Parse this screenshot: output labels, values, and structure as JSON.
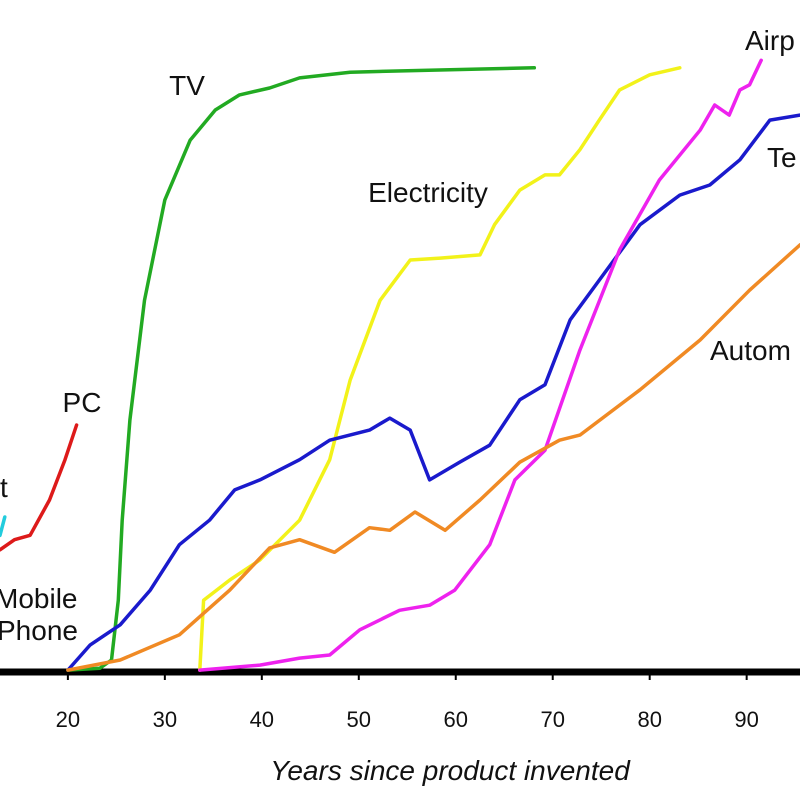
{
  "chart_data": {
    "type": "line",
    "x_label": "Years since product invented",
    "xlim": [
      13,
      95.5
    ],
    "ylim": [
      0,
      100
    ],
    "xticks": [
      20,
      30,
      40,
      50,
      60,
      70,
      80,
      90
    ],
    "annotations": [
      "Mobile",
      "Phone"
    ],
    "series": [
      {
        "name": "TV",
        "color": "#22aa22",
        "x": [
          20,
          23.3,
          24.5,
          25.2,
          25.6,
          26.4,
          27.9,
          30,
          32.6,
          35.2,
          37.7,
          40.8,
          43.9,
          49.1,
          59.4,
          68.1
        ],
        "values": [
          0.3,
          0.6,
          1.9,
          11.4,
          24.1,
          40,
          59,
          74.9,
          84.4,
          89.2,
          91.6,
          92.7,
          94.3,
          95.2,
          95.6,
          95.9
        ]
      },
      {
        "name": "Electricity",
        "color": "#f2f21a",
        "x": [
          33.6,
          34,
          36.7,
          39.8,
          43.9,
          47,
          49.1,
          52.2,
          55.3,
          58.4,
          62.5,
          64,
          66.6,
          69.2,
          70.7,
          72.8,
          74.8,
          76.9,
          80,
          83.1
        ],
        "values": [
          0.3,
          11.4,
          14.6,
          17.8,
          24.1,
          33.7,
          46.3,
          59,
          65.4,
          65.7,
          66.2,
          71,
          76.5,
          78.9,
          78.9,
          82.9,
          87.6,
          92.4,
          94.8,
          95.9
        ]
      },
      {
        "name": "Te",
        "color": "#1a1acc",
        "x": [
          20,
          22.3,
          25.4,
          28.5,
          31.5,
          34.6,
          37.2,
          39.8,
          43.9,
          47,
          51.1,
          53.2,
          55.3,
          57.3,
          60.4,
          63.5,
          66.6,
          69.2,
          71.8,
          74.8,
          79,
          83.1,
          86.2,
          89.3,
          92.4,
          95.5
        ],
        "values": [
          0.3,
          4.3,
          7.5,
          13,
          20.2,
          24.1,
          28.9,
          30.5,
          33.7,
          36.8,
          38.4,
          40.3,
          38.4,
          30.5,
          33.3,
          36,
          43.2,
          45.6,
          55.9,
          62.2,
          71,
          75.7,
          77.3,
          81.3,
          87.6,
          88.4
        ]
      },
      {
        "name": "Airp",
        "color": "#ee22ee",
        "x": [
          33.6,
          39.8,
          43.9,
          47,
          50.1,
          54.2,
          57.3,
          59.9,
          63.5,
          66.1,
          69.2,
          72.8,
          76.9,
          81,
          85.2,
          86.7,
          88.2,
          89.3,
          90.3,
          91.5
        ],
        "values": [
          0.3,
          1.1,
          2.2,
          2.7,
          6.7,
          9.8,
          10.6,
          13,
          20.2,
          30.5,
          35.2,
          51.1,
          67,
          78.1,
          86,
          90,
          88.4,
          92.4,
          93.2,
          97.1
        ]
      },
      {
        "name": "Autom",
        "color": "#f08a24",
        "x": [
          20,
          25.4,
          31.5,
          36.7,
          40.8,
          43.9,
          47.5,
          51.1,
          53.2,
          55.8,
          58.9,
          62.5,
          66.6,
          70.7,
          72.8,
          79,
          85.2,
          90.3,
          95.5
        ],
        "values": [
          0.3,
          1.9,
          5.9,
          13,
          19.7,
          21,
          19,
          22.9,
          22.5,
          25.4,
          22.5,
          27.3,
          33.3,
          36.8,
          37.6,
          44.8,
          52.7,
          60.6,
          67.8
        ]
      },
      {
        "name": "PC",
        "color": "#dd1a1a",
        "x": [
          13,
          14.5,
          16.1,
          18.1,
          19.7,
          20.9
        ],
        "values": [
          19.4,
          21,
          21.7,
          27.3,
          33.7,
          39.2
        ]
      },
      {
        "name": "t",
        "color": "#22ccdd",
        "x": [
          13,
          13.5
        ],
        "values": [
          21.7,
          24.6
        ]
      }
    ]
  }
}
